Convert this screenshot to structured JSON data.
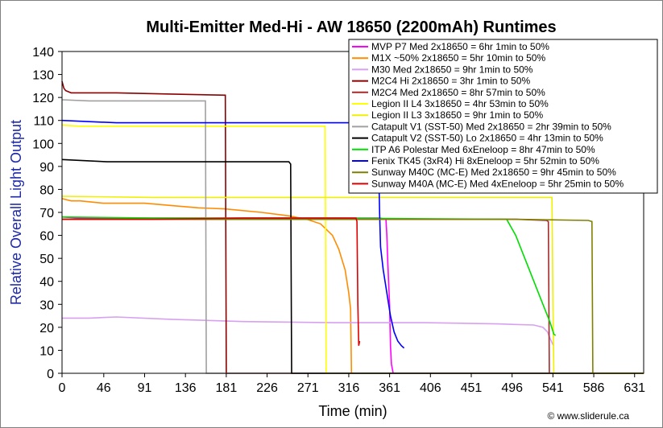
{
  "chart_data": {
    "type": "line",
    "title": "Multi-Emitter Med-Hi - AW 18650 (2200mAh) Runtimes",
    "xlabel": "Time (min)",
    "ylabel": "Relative Overall Light Output",
    "xlim": [
      0,
      641
    ],
    "ylim": [
      0,
      140
    ],
    "x_ticks": [
      0,
      46,
      91,
      136,
      181,
      226,
      271,
      316,
      361,
      406,
      451,
      496,
      541,
      586,
      631
    ],
    "y_ticks": [
      0,
      10,
      20,
      30,
      40,
      50,
      60,
      70,
      80,
      90,
      100,
      110,
      120,
      130,
      140
    ],
    "grid": false,
    "legend_position": "top-right",
    "credit": "© www.sliderule.ca",
    "series": [
      {
        "name": "MVP P7 Med 2x18650 = 6hr 1min to 50%",
        "color": "#ff00ff",
        "points": [
          [
            0,
            68
          ],
          [
            20,
            67.5
          ],
          [
            100,
            67.5
          ],
          [
            200,
            67.5
          ],
          [
            300,
            67.5
          ],
          [
            350,
            67.5
          ],
          [
            357,
            67
          ],
          [
            358,
            60
          ],
          [
            359,
            48
          ],
          [
            361,
            30
          ],
          [
            362,
            12
          ],
          [
            363,
            4
          ],
          [
            365,
            0
          ],
          [
            641,
            0
          ]
        ]
      },
      {
        "name": "M1X ~50% 2x18650 = 5hr 10min to 50%",
        "color": "#ff8c00",
        "points": [
          [
            0,
            76
          ],
          [
            10,
            75
          ],
          [
            20,
            75
          ],
          [
            46,
            74
          ],
          [
            91,
            74
          ],
          [
            120,
            73
          ],
          [
            150,
            72
          ],
          [
            180,
            71.5
          ],
          [
            220,
            70
          ],
          [
            250,
            68.5
          ],
          [
            270,
            67
          ],
          [
            285,
            65
          ],
          [
            298,
            60
          ],
          [
            305,
            54
          ],
          [
            312,
            45
          ],
          [
            316,
            35
          ],
          [
            318,
            28
          ],
          [
            319,
            0
          ],
          [
            641,
            0
          ]
        ]
      },
      {
        "name": "M30 Med 2x18650 = 9hr 1min to 50%",
        "color": "#d7a0f0",
        "points": [
          [
            0,
            24
          ],
          [
            30,
            24
          ],
          [
            60,
            24.5
          ],
          [
            120,
            23.5
          ],
          [
            200,
            22.5
          ],
          [
            300,
            22
          ],
          [
            400,
            22
          ],
          [
            480,
            21.5
          ],
          [
            520,
            21
          ],
          [
            530,
            20
          ],
          [
            535,
            18
          ],
          [
            538,
            15
          ],
          [
            541,
            12.5
          ],
          [
            542,
            12
          ]
        ]
      },
      {
        "name": "M2C4 Hi 2x18650 = 3hr 1min to 50%",
        "color": "#8b0000",
        "points": [
          [
            0,
            127
          ],
          [
            2,
            124
          ],
          [
            4,
            123
          ],
          [
            10,
            122
          ],
          [
            60,
            122
          ],
          [
            120,
            121.5
          ],
          [
            180,
            121
          ],
          [
            181,
            0
          ],
          [
            641,
            0
          ]
        ]
      },
      {
        "name": "M2C4 Med 2x18650 = 8hr 57min to 50%",
        "color": "#a52a2a",
        "points": [
          [
            0,
            67
          ],
          [
            100,
            67
          ],
          [
            200,
            67
          ],
          [
            300,
            67
          ],
          [
            400,
            67
          ],
          [
            500,
            67
          ],
          [
            534,
            66.5
          ],
          [
            536,
            66
          ],
          [
            537,
            0
          ],
          [
            641,
            0
          ]
        ]
      },
      {
        "name": "Legion II L4 3x18650 = 4hr 53min to 50%",
        "color": "#ffff00",
        "points": [
          [
            0,
            108
          ],
          [
            20,
            107.5
          ],
          [
            100,
            107.5
          ],
          [
            200,
            107.5
          ],
          [
            290,
            107.5
          ],
          [
            291,
            0
          ],
          [
            641,
            0
          ]
        ]
      },
      {
        "name": "Legion II L3 3x18650 = 9hr 1min to 50%",
        "color": "#f0f000",
        "points": [
          [
            0,
            77
          ],
          [
            100,
            76.5
          ],
          [
            300,
            76.5
          ],
          [
            540,
            76.5
          ],
          [
            541,
            30
          ],
          [
            542,
            0
          ],
          [
            641,
            0
          ]
        ]
      },
      {
        "name": "Catapult V1 (SST-50) Med 2x18650 = 2hr 39min to 50%",
        "color": "#a0a0a0",
        "points": [
          [
            0,
            119
          ],
          [
            30,
            118.5
          ],
          [
            100,
            118.5
          ],
          [
            158,
            118.5
          ],
          [
            159,
            0
          ],
          [
            641,
            0
          ]
        ]
      },
      {
        "name": "Catapult V2 (SST-50) Lo 2x18650 = 4hr 13min to 50%",
        "color": "#000000",
        "points": [
          [
            0,
            93
          ],
          [
            50,
            92
          ],
          [
            150,
            92
          ],
          [
            250,
            92
          ],
          [
            252,
            91
          ],
          [
            253,
            0
          ],
          [
            641,
            0
          ]
        ]
      },
      {
        "name": "ITP A6 Polestar Med 6xEneloop = 8hr 47min to 50%",
        "color": "#00dd00",
        "points": [
          [
            0,
            68
          ],
          [
            100,
            67.5
          ],
          [
            300,
            67.5
          ],
          [
            490,
            67
          ],
          [
            500,
            60
          ],
          [
            515,
            45
          ],
          [
            528,
            32
          ],
          [
            538,
            22
          ],
          [
            542,
            17
          ],
          [
            544,
            16.5
          ]
        ]
      },
      {
        "name": "Fenix TK45 (3xR4) Hi 8xEneloop = 5hr 52min to 50%",
        "color": "#0000ff",
        "points": [
          [
            0,
            110
          ],
          [
            60,
            109
          ],
          [
            150,
            109
          ],
          [
            250,
            109
          ],
          [
            330,
            109
          ],
          [
            348,
            109
          ],
          [
            350,
            70
          ],
          [
            351,
            55
          ],
          [
            354,
            45
          ],
          [
            358,
            35
          ],
          [
            362,
            25
          ],
          [
            366,
            18
          ],
          [
            370,
            14
          ],
          [
            374,
            12
          ],
          [
            377,
            11
          ]
        ]
      },
      {
        "name": "Sunway M40C (MC-E) Med 2x18650 = 9hr 45min to 50%",
        "color": "#808000",
        "points": [
          [
            0,
            67
          ],
          [
            100,
            67
          ],
          [
            300,
            67
          ],
          [
            500,
            67
          ],
          [
            580,
            66.5
          ],
          [
            584,
            66
          ],
          [
            585,
            0
          ],
          [
            641,
            0
          ]
        ]
      },
      {
        "name": "Sunway M40A (MC-E) Med 4xEneloop = 5hr 25min to 50%",
        "color": "#dd0000",
        "points": [
          [
            0,
            67
          ],
          [
            100,
            67
          ],
          [
            200,
            67.5
          ],
          [
            300,
            67.5
          ],
          [
            324,
            67.5
          ],
          [
            325,
            66
          ],
          [
            326,
            30
          ],
          [
            327,
            12
          ],
          [
            328,
            14
          ]
        ]
      }
    ]
  }
}
